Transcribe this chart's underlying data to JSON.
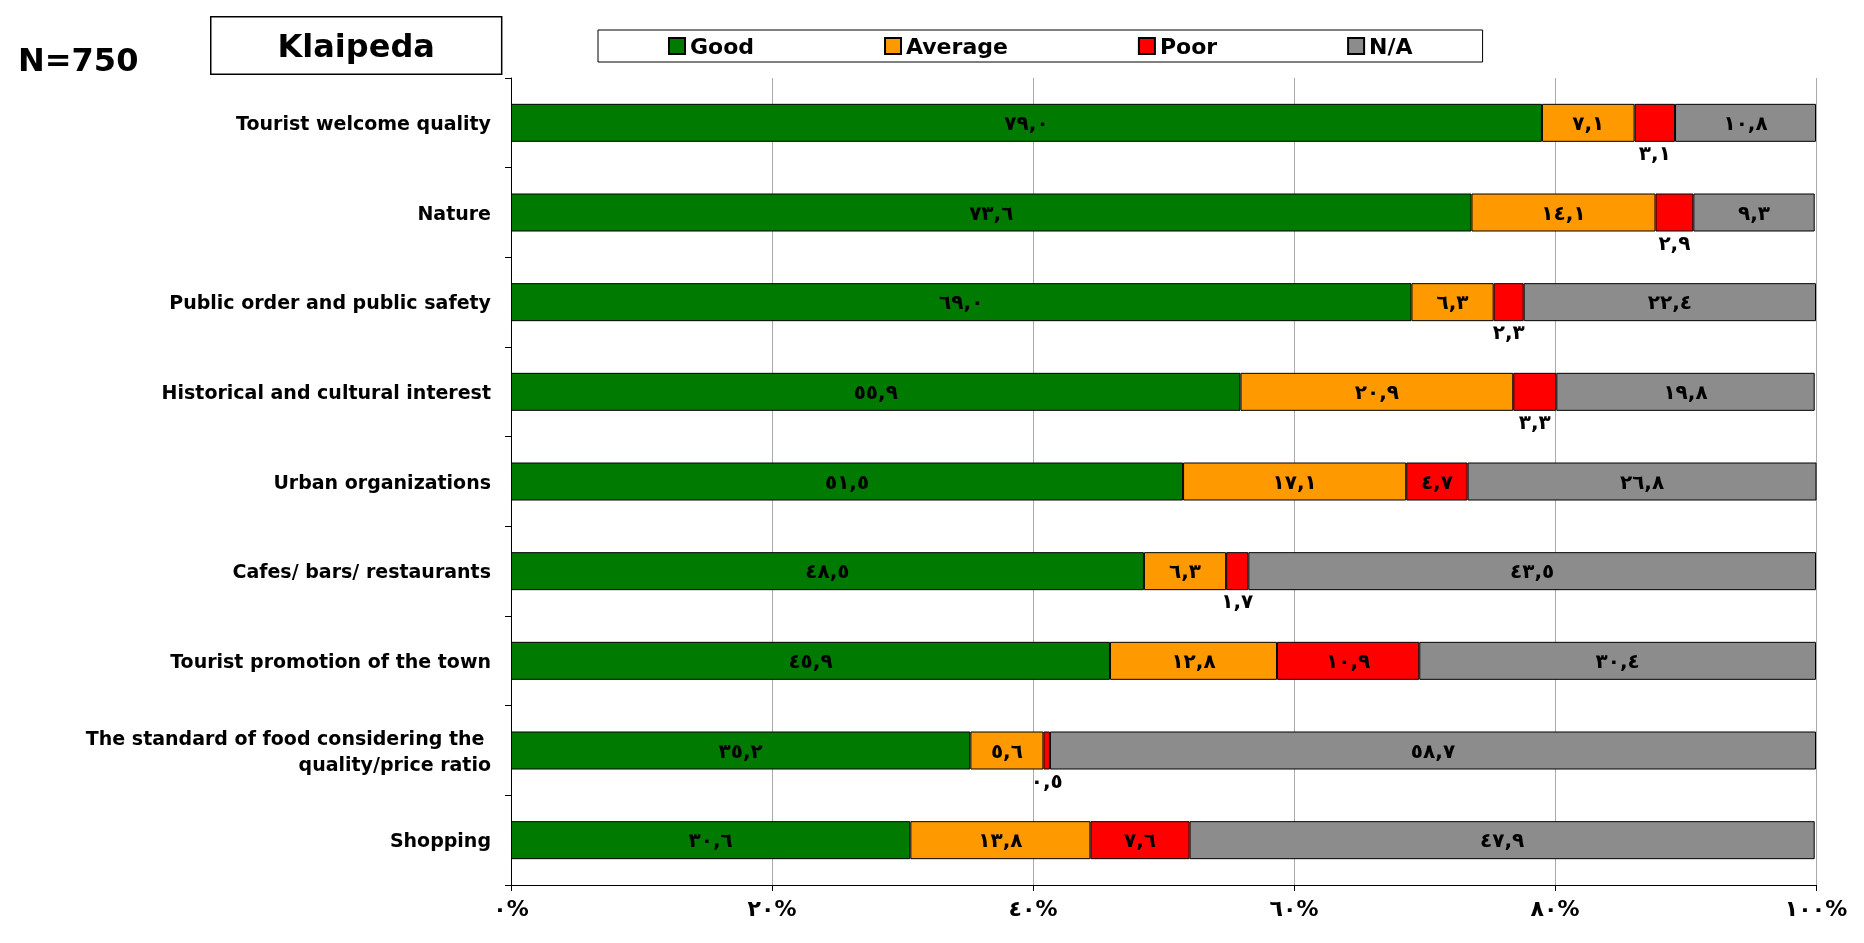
{
  "chart_data": {
    "type": "bar",
    "orientation": "horizontal",
    "stacked": true,
    "annotations": [
      "N=750",
      "Klaipeda"
    ],
    "categories": [
      "Tourist welcome quality",
      "Nature",
      "Public order and public safety",
      "Historical and cultural interest",
      "Urban organizations",
      "Cafes/ bars/ restaurants",
      "Tourist promotion of the town",
      "The standard of food considering the quality/price ratio",
      "Shopping"
    ],
    "series": [
      {
        "name": "Good",
        "color": "#007a00",
        "values": [
          79.0,
          73.6,
          69.0,
          55.9,
          51.5,
          48.5,
          45.9,
          35.2,
          30.6
        ],
        "value_labels": [
          "٧٩,٠",
          "٧٣,٦",
          "٦٩,٠",
          "٥٥,٩",
          "٥١,٥",
          "٤٨,٥",
          "٤٥,٩",
          "٣٥,٢",
          "٣٠,٦"
        ]
      },
      {
        "name": "Average",
        "color": "#ff9900",
        "values": [
          7.1,
          14.1,
          6.3,
          20.9,
          17.1,
          6.3,
          12.8,
          5.6,
          13.8
        ],
        "value_labels": [
          "٧,١",
          "١٤,١",
          "٦,٣",
          "٢٠,٩",
          "١٧,١",
          "٦,٣",
          "١٢,٨",
          "٥,٦",
          "١٣,٨"
        ]
      },
      {
        "name": "Poor",
        "color": "#ff0000",
        "values": [
          3.1,
          2.9,
          2.3,
          3.3,
          4.7,
          1.7,
          10.9,
          0.5,
          7.6
        ],
        "value_labels": [
          "٣,١",
          "٢,٩",
          "٢,٣",
          "٣,٣",
          "٤,٧",
          "١,٧",
          "١٠,٩",
          "٠,٥",
          "٧,٦"
        ]
      },
      {
        "name": "N/A",
        "color": "#8c8c8c",
        "values": [
          10.8,
          9.3,
          22.4,
          19.8,
          26.8,
          43.5,
          30.4,
          58.7,
          47.9
        ],
        "value_labels": [
          "١٠,٨",
          "٩,٣",
          "٢٢,٤",
          "١٩,٨",
          "٢٦,٨",
          "٤٣,٥",
          "٣٠,٤",
          "٥٨,٧",
          "٤٧,٩"
        ]
      }
    ],
    "xlim": [
      0,
      100
    ],
    "xticks": [
      {
        "value": 0,
        "label": "٠%"
      },
      {
        "value": 20,
        "label": "٢٠%"
      },
      {
        "value": 40,
        "label": "٤٠%"
      },
      {
        "value": 60,
        "label": "٦٠%"
      },
      {
        "value": 80,
        "label": "٨٠%"
      },
      {
        "value": 100,
        "label": "١٠٠%"
      }
    ],
    "grid": "x",
    "legend": "top"
  }
}
